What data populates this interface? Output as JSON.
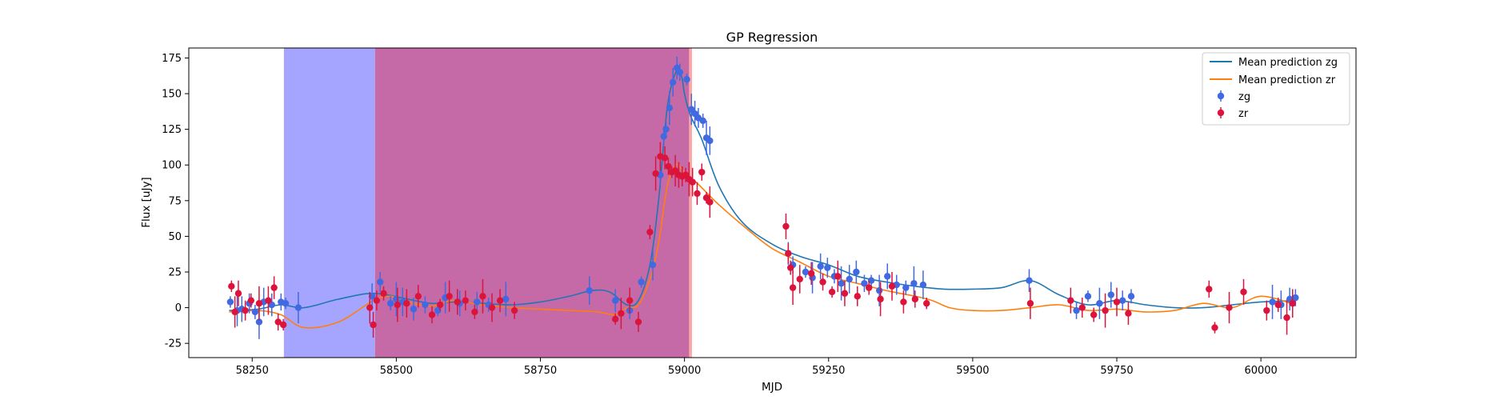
{
  "chart_data": {
    "type": "scatter",
    "title": "GP Regression",
    "xlabel": "MJD",
    "ylabel": "Flux [uJy]",
    "xlim": [
      58140,
      60165
    ],
    "ylim": [
      -35,
      182
    ],
    "xticks": [
      58250,
      58500,
      58750,
      59000,
      59250,
      59500,
      59750,
      60000
    ],
    "yticks": [
      -25,
      0,
      25,
      50,
      75,
      100,
      125,
      150,
      175
    ],
    "legend_position": "upper right",
    "legend": [
      "Mean prediction zg",
      "Mean prediction zr",
      "zg",
      "zr"
    ],
    "colors": {
      "line_zg": "#1f77b4",
      "line_zr": "#ff7f0e",
      "points_zg": "#4169e1",
      "points_zr": "#dc143c",
      "span_blue": "#7a7aff",
      "span_red": "#e0507a",
      "span_overlap": "#c56aa6",
      "span_thin": "#ff8a8a"
    },
    "shaded_regions": [
      {
        "name": "window zg",
        "x": [
          58305,
          59008
        ]
      },
      {
        "name": "window zr",
        "x": [
          58463,
          59013
        ]
      }
    ],
    "series": [
      {
        "name": "Mean prediction zg",
        "kind": "line",
        "x": [
          58210,
          58260,
          58300,
          58340,
          58400,
          58460,
          58520,
          58560,
          58600,
          58650,
          58700,
          58750,
          58800,
          58840,
          58870,
          58900,
          58920,
          58940,
          58955,
          58970,
          58985,
          58995,
          59000,
          59010,
          59030,
          59060,
          59100,
          59150,
          59200,
          59250,
          59300,
          59350,
          59400,
          59450,
          59500,
          59550,
          59600,
          59650,
          59700,
          59750,
          59800,
          59850,
          59900,
          59950,
          60000,
          60060
        ],
        "y": [
          -2,
          -1,
          2,
          0,
          6,
          10,
          6,
          3,
          4,
          3,
          2,
          4,
          8,
          12,
          11,
          2,
          5,
          30,
          75,
          140,
          165,
          162,
          150,
          135,
          118,
          85,
          60,
          45,
          36,
          30,
          22,
          18,
          15,
          13,
          13,
          14,
          19,
          9,
          2,
          5,
          2,
          0,
          0,
          2,
          4,
          5
        ]
      },
      {
        "name": "Mean prediction zr",
        "kind": "line",
        "x": [
          58210,
          58260,
          58300,
          58340,
          58400,
          58460,
          58490,
          58520,
          58560,
          58600,
          58650,
          58700,
          58750,
          58800,
          58850,
          58880,
          58900,
          58920,
          58940,
          58955,
          58970,
          58985,
          58995,
          59005,
          59020,
          59040,
          59060,
          59100,
          59150,
          59200,
          59250,
          59300,
          59350,
          59400,
          59430,
          59460,
          59500,
          59550,
          59600,
          59650,
          59700,
          59750,
          59800,
          59850,
          59900,
          59950,
          60000,
          60060
        ],
        "y": [
          -3,
          -2,
          -5,
          -14,
          -10,
          5,
          8,
          4,
          1,
          5,
          2,
          0,
          -1,
          -2,
          -3,
          -5,
          0,
          2,
          20,
          45,
          85,
          100,
          97,
          92,
          88,
          80,
          72,
          58,
          42,
          32,
          22,
          17,
          12,
          8,
          5,
          0,
          -2,
          -2,
          0,
          2,
          -2,
          -1,
          -3,
          -2,
          3,
          0,
          8,
          2
        ]
      },
      {
        "name": "zg",
        "kind": "points",
        "x": [
          58212,
          58224,
          58232,
          58245,
          58255,
          58262,
          58270,
          58284,
          58300,
          58308,
          58330,
          58458,
          58472,
          58490,
          58500,
          58511,
          58530,
          58550,
          58572,
          58585,
          58610,
          58640,
          58660,
          58690,
          58835,
          58880,
          58905,
          58925,
          58945,
          58958,
          58964,
          58968,
          58974,
          58980,
          58987,
          58992,
          59004,
          59012,
          59018,
          59024,
          59032,
          59038,
          59044,
          59180,
          59188,
          59210,
          59222,
          59236,
          59248,
          59260,
          59272,
          59286,
          59298,
          59312,
          59324,
          59338,
          59352,
          59368,
          59384,
          59398,
          59414,
          59598,
          59680,
          59700,
          59720,
          59740,
          59760,
          59775,
          60020,
          60035,
          60050,
          60060
        ],
        "y": [
          4,
          -2,
          -1,
          3,
          -3,
          -10,
          4,
          2,
          4,
          3,
          0,
          8,
          18,
          3,
          6,
          4,
          -1,
          2,
          -2,
          7,
          3,
          4,
          2,
          6,
          12,
          5,
          -2,
          18,
          30,
          93,
          120,
          125,
          140,
          158,
          168,
          165,
          160,
          139,
          136,
          133,
          131,
          119,
          117,
          38,
          30,
          25,
          21,
          29,
          28,
          22,
          17,
          20,
          25,
          17,
          19,
          12,
          22,
          16,
          14,
          17,
          16,
          19,
          -2,
          8,
          3,
          9,
          5,
          8,
          4,
          2,
          6,
          7
        ]
      },
      {
        "name": "zr",
        "kind": "points",
        "x": [
          58214,
          58220,
          58226,
          58238,
          58248,
          58262,
          58278,
          58288,
          58295,
          58304,
          58454,
          58460,
          58466,
          58478,
          58502,
          58518,
          58538,
          58562,
          58576,
          58592,
          58606,
          58620,
          58636,
          58650,
          58666,
          58680,
          58705,
          58880,
          58890,
          58905,
          58920,
          58940,
          58950,
          58958,
          58966,
          58972,
          58978,
          58984,
          58990,
          58996,
          59002,
          59008,
          59014,
          59022,
          59030,
          59038,
          59044,
          59176,
          59180,
          59184,
          59188,
          59200,
          59220,
          59240,
          59256,
          59266,
          59278,
          59300,
          59320,
          59340,
          59360,
          59380,
          59400,
          59420,
          59600,
          59670,
          59690,
          59710,
          59730,
          59750,
          59770,
          59910,
          59920,
          59945,
          59970,
          60010,
          60030,
          60045,
          60055
        ],
        "y": [
          15,
          -3,
          10,
          -2,
          5,
          3,
          5,
          14,
          -10,
          -12,
          0,
          -12,
          5,
          10,
          2,
          3,
          8,
          -5,
          2,
          8,
          4,
          5,
          -3,
          8,
          0,
          5,
          -2,
          -8,
          -4,
          5,
          -10,
          53,
          94,
          106,
          105,
          99,
          95,
          96,
          93,
          92,
          93,
          90,
          88,
          80,
          95,
          77,
          74,
          57,
          38,
          28,
          14,
          20,
          24,
          18,
          11,
          22,
          10,
          8,
          14,
          6,
          15,
          4,
          6,
          3,
          3,
          5,
          0,
          -5,
          -2,
          4,
          -4,
          13,
          -14,
          0,
          11,
          -2,
          2,
          -7,
          3
        ]
      }
    ]
  }
}
